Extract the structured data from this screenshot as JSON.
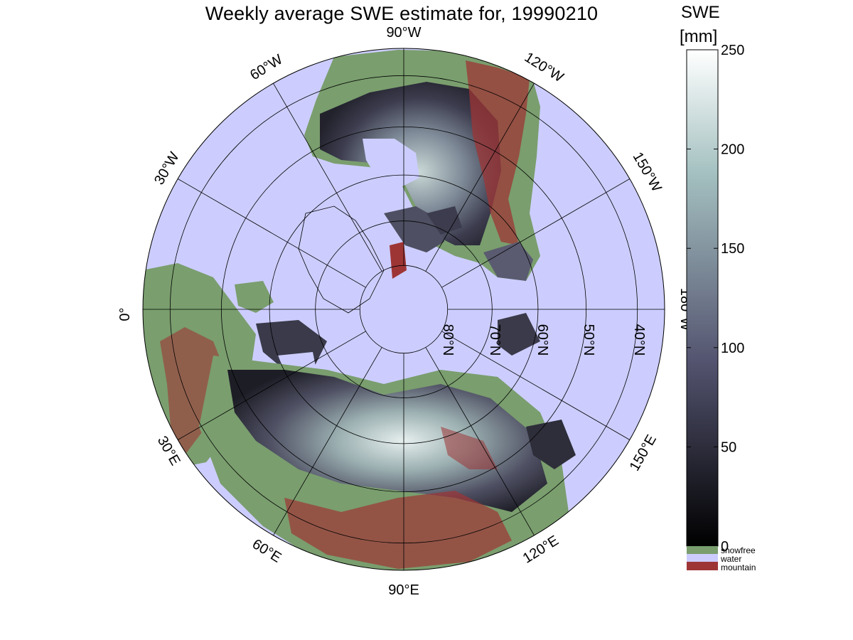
{
  "title": "Weekly average SWE estimate for, 19990210",
  "map": {
    "projection": "north-polar-stereographic",
    "longitude_labels": [
      {
        "lon": 90,
        "text": "90°W"
      },
      {
        "lon": 60,
        "text": "60°W"
      },
      {
        "lon": 120,
        "text": "120°W"
      },
      {
        "lon": 30,
        "text": "30°W"
      },
      {
        "lon": 150,
        "text": "150°W"
      },
      {
        "lon": 0,
        "text": "0°"
      },
      {
        "lon": 180,
        "text": "180°W"
      },
      {
        "lon": -30,
        "text": "30°E"
      },
      {
        "lon": -150,
        "text": "150°E"
      },
      {
        "lon": -60,
        "text": "60°E"
      },
      {
        "lon": -120,
        "text": "120°E"
      },
      {
        "lon": -90,
        "text": "90°E"
      }
    ],
    "latitude_labels": [
      {
        "lat": 80,
        "text": "80°N"
      },
      {
        "lat": 70,
        "text": "70°N"
      },
      {
        "lat": 60,
        "text": "60°N"
      },
      {
        "lat": 50,
        "text": "50°N"
      },
      {
        "lat": 40,
        "text": "40°N"
      }
    ],
    "latitude_circles": [
      80,
      70,
      60,
      50,
      40
    ],
    "southern_boundary_lat": 35
  },
  "colorbar": {
    "label_line1": "SWE",
    "label_line2": "[mm]",
    "min": 0,
    "max": 250,
    "ticks": [
      0,
      50,
      100,
      150,
      200,
      250
    ],
    "colormap": "bone",
    "categories": [
      {
        "name": "snowfree",
        "color": "#7a9e6e"
      },
      {
        "name": "water",
        "color": "#cccdfe"
      },
      {
        "name": "mountain",
        "color": "#9e3535"
      }
    ]
  },
  "colors": {
    "water": "#cccdfe",
    "snowfree": "#7a9e6e",
    "mountain": "#9e3535",
    "swe_low": "#15151c",
    "swe_high": "#eef5f4"
  }
}
